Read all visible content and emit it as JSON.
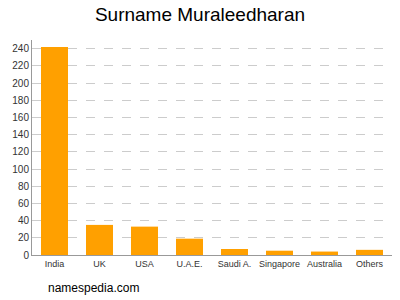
{
  "chart_data": {
    "type": "bar",
    "title": "Surname Muraleedharan",
    "categories": [
      "India",
      "UK",
      "USA",
      "U.A.E.",
      "Saudi A.",
      "Singapore",
      "Australia",
      "Others"
    ],
    "values": [
      242,
      35,
      33,
      19,
      7,
      5,
      4,
      6
    ],
    "color": "#ffa000",
    "ylim": [
      0,
      250
    ],
    "yticks": [
      0,
      20,
      40,
      60,
      80,
      100,
      120,
      140,
      160,
      180,
      200,
      220,
      240
    ],
    "grid": true,
    "annotations": [
      {
        "text": "namespedia.com"
      }
    ]
  }
}
